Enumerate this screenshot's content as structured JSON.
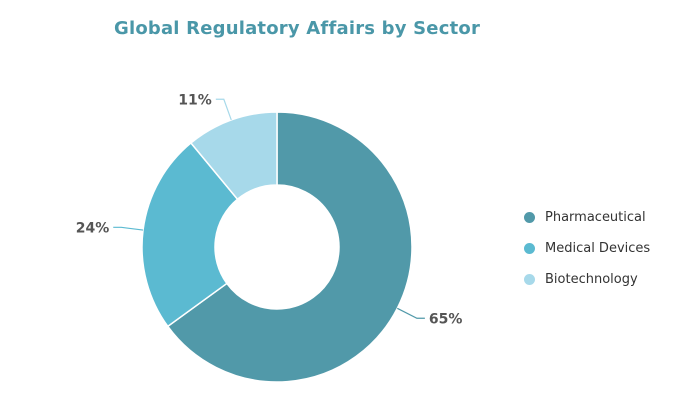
{
  "chart_data": {
    "type": "pie",
    "title": "Global Regulatory Affairs by Sector",
    "categories": [
      "Pharmaceutical",
      "Medical Devices",
      "Biotechnology"
    ],
    "values": [
      65,
      24,
      11
    ],
    "labels": [
      "65%",
      "24%",
      "11%"
    ],
    "colors": [
      "#5199a9",
      "#5bbad1",
      "#a7d9ea"
    ],
    "donut": true,
    "legend_position": "right"
  }
}
